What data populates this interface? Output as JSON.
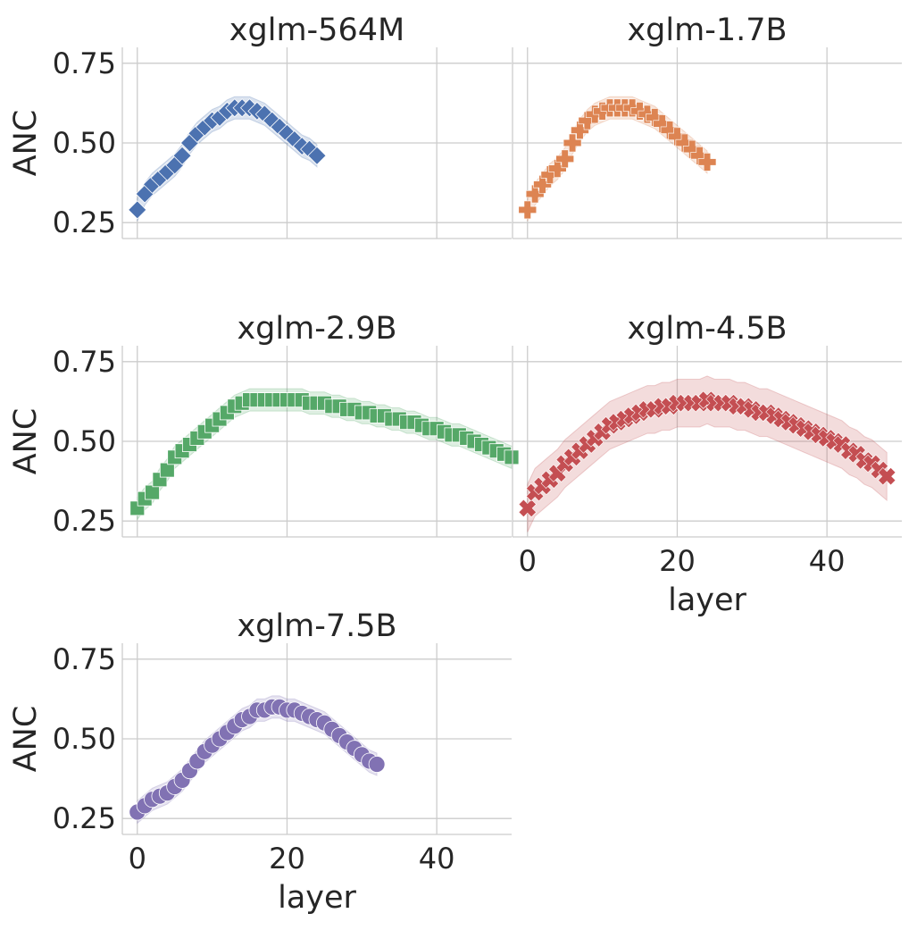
{
  "chart_data": [
    {
      "type": "scatter",
      "title": "xglm-564M",
      "ylabel": "ANC",
      "xlabel": "",
      "xlim": [
        -2,
        50
      ],
      "ylim": [
        0.2,
        0.8
      ],
      "yticks": [
        "0.25",
        "0.50",
        "0.75"
      ],
      "xticks": [],
      "marker": "diamond",
      "color": "#4c72b0",
      "band_width": 0.035,
      "x": [
        0,
        1,
        2,
        3,
        4,
        5,
        6,
        7,
        8,
        9,
        10,
        11,
        12,
        13,
        14,
        15,
        16,
        17,
        18,
        19,
        20,
        21,
        22,
        23,
        24
      ],
      "y": [
        0.29,
        0.34,
        0.37,
        0.39,
        0.41,
        0.43,
        0.46,
        0.5,
        0.53,
        0.55,
        0.57,
        0.58,
        0.6,
        0.61,
        0.61,
        0.61,
        0.6,
        0.59,
        0.57,
        0.55,
        0.53,
        0.51,
        0.49,
        0.48,
        0.46
      ]
    },
    {
      "type": "scatter",
      "title": "xglm-1.7B",
      "ylabel": "",
      "xlabel": "",
      "xlim": [
        -2,
        50
      ],
      "ylim": [
        0.2,
        0.8
      ],
      "yticks": [],
      "xticks": [],
      "marker": "plus",
      "color": "#dd8452",
      "band_width": 0.035,
      "x": [
        0,
        1,
        2,
        3,
        4,
        5,
        6,
        7,
        8,
        9,
        10,
        11,
        12,
        13,
        14,
        15,
        16,
        17,
        18,
        19,
        20,
        21,
        22,
        23,
        24
      ],
      "y": [
        0.29,
        0.34,
        0.37,
        0.4,
        0.42,
        0.45,
        0.5,
        0.54,
        0.57,
        0.59,
        0.6,
        0.61,
        0.61,
        0.61,
        0.61,
        0.6,
        0.59,
        0.58,
        0.56,
        0.54,
        0.52,
        0.5,
        0.48,
        0.46,
        0.44
      ]
    },
    {
      "type": "scatter",
      "title": "xglm-2.9B",
      "ylabel": "ANC",
      "xlabel": "",
      "xlim": [
        -2,
        50
      ],
      "ylim": [
        0.2,
        0.8
      ],
      "yticks": [
        "0.25",
        "0.50",
        "0.75"
      ],
      "xticks": [],
      "marker": "square",
      "color": "#55a868",
      "band_width": 0.035,
      "x": [
        0,
        1,
        2,
        3,
        4,
        5,
        6,
        7,
        8,
        9,
        10,
        11,
        12,
        13,
        14,
        15,
        16,
        17,
        18,
        19,
        20,
        21,
        22,
        23,
        24,
        25,
        26,
        27,
        28,
        29,
        30,
        31,
        32,
        33,
        34,
        35,
        36,
        37,
        38,
        39,
        40,
        41,
        42,
        43,
        44,
        45,
        46,
        47,
        48,
        49,
        50
      ],
      "y": [
        0.29,
        0.32,
        0.34,
        0.38,
        0.41,
        0.45,
        0.47,
        0.49,
        0.51,
        0.53,
        0.55,
        0.57,
        0.59,
        0.61,
        0.62,
        0.63,
        0.63,
        0.63,
        0.63,
        0.63,
        0.63,
        0.63,
        0.63,
        0.62,
        0.62,
        0.62,
        0.61,
        0.61,
        0.6,
        0.6,
        0.59,
        0.59,
        0.58,
        0.58,
        0.57,
        0.57,
        0.56,
        0.56,
        0.55,
        0.54,
        0.54,
        0.53,
        0.52,
        0.52,
        0.51,
        0.5,
        0.49,
        0.48,
        0.47,
        0.46,
        0.45
      ]
    },
    {
      "type": "scatter",
      "title": "xglm-4.5B",
      "ylabel": "",
      "xlabel": "layer",
      "xlim": [
        -2,
        50
      ],
      "ylim": [
        0.2,
        0.8
      ],
      "yticks": [],
      "xticks": [
        "0",
        "20",
        "40"
      ],
      "marker": "x",
      "color": "#c44e52",
      "band_width": 0.075,
      "x": [
        0,
        1,
        2,
        3,
        4,
        5,
        6,
        7,
        8,
        9,
        10,
        11,
        12,
        13,
        14,
        15,
        16,
        17,
        18,
        19,
        20,
        21,
        22,
        23,
        24,
        25,
        26,
        27,
        28,
        29,
        30,
        31,
        32,
        33,
        34,
        35,
        36,
        37,
        38,
        39,
        40,
        41,
        42,
        43,
        44,
        45,
        46,
        47,
        48
      ],
      "y": [
        0.29,
        0.34,
        0.36,
        0.38,
        0.4,
        0.43,
        0.45,
        0.47,
        0.49,
        0.51,
        0.53,
        0.55,
        0.56,
        0.57,
        0.58,
        0.59,
        0.6,
        0.6,
        0.61,
        0.61,
        0.62,
        0.62,
        0.62,
        0.62,
        0.63,
        0.62,
        0.62,
        0.62,
        0.61,
        0.61,
        0.6,
        0.59,
        0.59,
        0.58,
        0.57,
        0.56,
        0.55,
        0.54,
        0.53,
        0.52,
        0.51,
        0.5,
        0.49,
        0.47,
        0.46,
        0.44,
        0.43,
        0.41,
        0.39
      ]
    },
    {
      "type": "scatter",
      "title": "xglm-7.5B",
      "ylabel": "ANC",
      "xlabel": "layer",
      "xlim": [
        -2,
        50
      ],
      "ylim": [
        0.2,
        0.8
      ],
      "yticks": [
        "0.25",
        "0.50",
        "0.75"
      ],
      "xticks": [
        "0",
        "20",
        "40"
      ],
      "marker": "circle",
      "color": "#8172b3",
      "band_width": 0.035,
      "x": [
        0,
        1,
        2,
        3,
        4,
        5,
        6,
        7,
        8,
        9,
        10,
        11,
        12,
        13,
        14,
        15,
        16,
        17,
        18,
        19,
        20,
        21,
        22,
        23,
        24,
        25,
        26,
        27,
        28,
        29,
        30,
        31,
        32
      ],
      "y": [
        0.27,
        0.29,
        0.31,
        0.32,
        0.33,
        0.35,
        0.37,
        0.4,
        0.43,
        0.46,
        0.48,
        0.5,
        0.52,
        0.54,
        0.56,
        0.57,
        0.59,
        0.59,
        0.6,
        0.6,
        0.59,
        0.59,
        0.58,
        0.57,
        0.56,
        0.55,
        0.53,
        0.51,
        0.49,
        0.47,
        0.45,
        0.43,
        0.42
      ]
    }
  ]
}
